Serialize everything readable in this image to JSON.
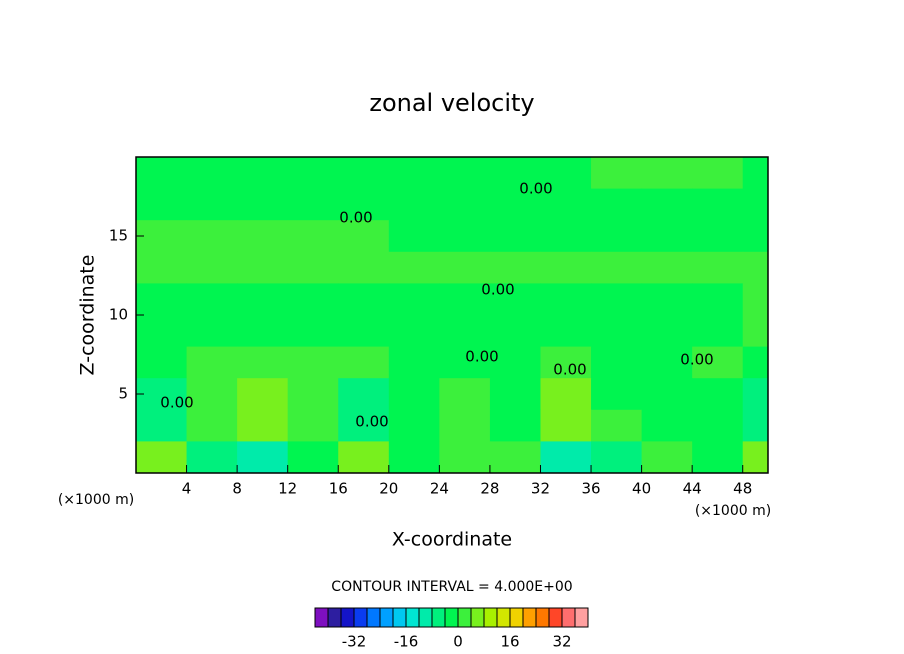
{
  "chart_data": {
    "type": "contour",
    "title": "zonal velocity",
    "x_label": "X-coordinate",
    "y_label": "Z-coordinate",
    "x_unit": "(×1000 m)",
    "contour_note": "CONTOUR INTERVAL = 4.000E+00",
    "contour_labels": [
      "0.00",
      "0.00",
      "0.00",
      "0.00",
      "0.00",
      "0.00",
      "0.00",
      "0.00"
    ],
    "xlim": [
      0,
      50
    ],
    "ylim": [
      0,
      20
    ],
    "xticks": [
      4,
      8,
      12,
      16,
      20,
      24,
      28,
      32,
      36,
      40,
      44,
      48
    ],
    "yticks": [
      5,
      10,
      15
    ],
    "x": [
      2,
      6,
      10,
      14,
      18,
      22,
      26,
      30,
      34,
      38,
      42,
      46,
      50
    ],
    "z": [
      19,
      17,
      15,
      13,
      11,
      9,
      7,
      5,
      3,
      1
    ],
    "values": [
      [
        -1,
        -1,
        -1,
        -1,
        -1,
        -1,
        -1,
        -1,
        -1,
        1,
        1,
        1,
        -1
      ],
      [
        -1,
        -1,
        -1,
        -1,
        -1,
        -1,
        -1,
        -1,
        -1,
        -1,
        -1,
        -1,
        -1
      ],
      [
        1,
        1,
        1,
        1,
        1,
        -1,
        -1,
        -1,
        -1,
        -1,
        -1,
        -1,
        -1
      ],
      [
        1,
        1,
        1,
        1,
        1,
        1,
        1,
        1,
        1,
        1,
        1,
        1,
        1
      ],
      [
        -1,
        -1,
        -1,
        -1,
        -1,
        -1,
        -1,
        -1,
        -1,
        -1,
        -1,
        -1,
        1
      ],
      [
        -1,
        -1,
        -1,
        -1,
        -1,
        -3,
        -1,
        -1,
        -1,
        -1,
        -1,
        -1,
        1
      ],
      [
        -1,
        1,
        2,
        1,
        1,
        -1,
        -1,
        -2,
        1,
        -1,
        -1,
        1,
        -1
      ],
      [
        -6,
        1,
        6,
        1,
        -8,
        -1,
        1,
        -4,
        7,
        -1,
        -4,
        -1,
        -8
      ],
      [
        -6,
        2,
        7,
        2,
        -6,
        -2,
        1,
        -4,
        7,
        3,
        -4,
        -2,
        -6
      ],
      [
        6,
        -6,
        -12,
        -2,
        4,
        -2,
        2,
        1,
        -12,
        -6,
        2,
        -4,
        4
      ]
    ],
    "levels": [
      -40,
      -36,
      -32,
      -28,
      -24,
      -20,
      -16,
      -12,
      -8,
      -4,
      0,
      4,
      8,
      12,
      16,
      20,
      24,
      28,
      32,
      36
    ],
    "colors": [
      "#7e0fc0",
      "#2d1ea0",
      "#1414c8",
      "#0a3cf0",
      "#0078ff",
      "#00a0ff",
      "#00c8f0",
      "#00e6d2",
      "#00ebaa",
      "#00f07d",
      "#00f550",
      "#3cf03c",
      "#78f01e",
      "#a8f000",
      "#d2e600",
      "#f0d200",
      "#ffa000",
      "#ff7800",
      "#ff4628",
      "#ff6e6e",
      "#ffa0a0"
    ],
    "colorbar_ticks": [
      -32,
      -16,
      0,
      16,
      32
    ]
  }
}
